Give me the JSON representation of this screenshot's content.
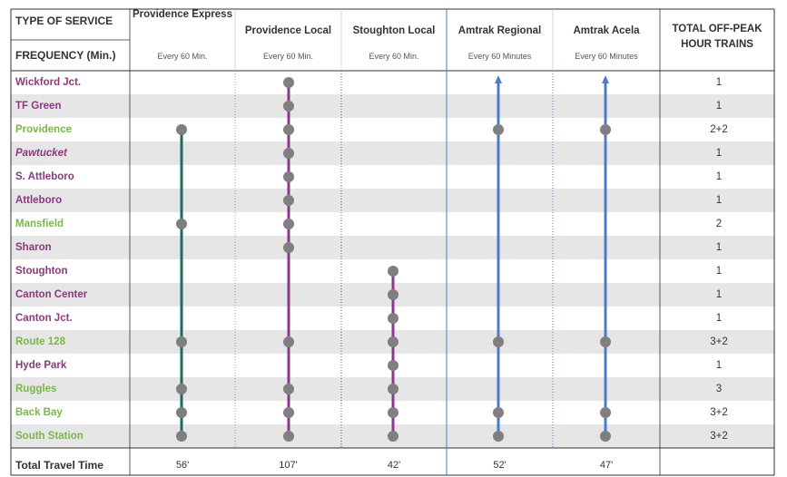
{
  "header": {
    "type_of_service": "TYPE OF SERVICE",
    "frequency": "FREQUENCY (Min.)",
    "total_trains": "TOTAL OFF-PEAK HOUR TRAINS"
  },
  "services": [
    {
      "name": "Providence Express",
      "frequency": "Every 60 Min.",
      "travel_time": "56'",
      "color": "#1f6b5f",
      "style": "dots",
      "stops": [
        2,
        6,
        11,
        13,
        14,
        15
      ]
    },
    {
      "name": "Providence Local",
      "frequency": "Every 60 Min.",
      "travel_time": "107'",
      "color": "#8b3a8a",
      "style": "dots",
      "stops": [
        0,
        1,
        2,
        3,
        4,
        5,
        6,
        7,
        11,
        13,
        14,
        15
      ]
    },
    {
      "name": "Stoughton Local",
      "frequency": "Every 60 Min.",
      "travel_time": "42'",
      "color": "#8b3a8a",
      "style": "dots",
      "stops": [
        8,
        9,
        10,
        11,
        12,
        13,
        14,
        15
      ]
    },
    {
      "name": "Amtrak Regional",
      "frequency": "Every 60 Minutes",
      "travel_time": "52'",
      "color": "#4a7cc9",
      "style": "arrow",
      "stops": [
        2,
        11,
        14,
        15
      ]
    },
    {
      "name": "Amtrak Acela",
      "frequency": "Every 60 Minutes",
      "travel_time": "47'",
      "color": "#4a7cc9",
      "style": "arrow",
      "stops": [
        2,
        11,
        14,
        15
      ]
    }
  ],
  "stations": [
    {
      "name": "Wickford Jct.",
      "color": "purple",
      "italic": false,
      "total": "1"
    },
    {
      "name": "TF Green",
      "color": "purple",
      "italic": false,
      "total": "1"
    },
    {
      "name": "Providence",
      "color": "green",
      "italic": false,
      "total": "2+2"
    },
    {
      "name": "Pawtucket",
      "color": "purple",
      "italic": true,
      "total": "1"
    },
    {
      "name": "S. Attleboro",
      "color": "purple",
      "italic": false,
      "total": "1"
    },
    {
      "name": "Attleboro",
      "color": "purple",
      "italic": false,
      "total": "1"
    },
    {
      "name": "Mansfield",
      "color": "green",
      "italic": false,
      "total": "2"
    },
    {
      "name": "Sharon",
      "color": "purple",
      "italic": false,
      "total": "1"
    },
    {
      "name": "Stoughton",
      "color": "purple",
      "italic": false,
      "total": "1"
    },
    {
      "name": "Canton Center",
      "color": "purple",
      "italic": false,
      "total": "1"
    },
    {
      "name": "Canton Jct.",
      "color": "purple",
      "italic": false,
      "total": "1"
    },
    {
      "name": "Route 128",
      "color": "green",
      "italic": false,
      "total": "3+2"
    },
    {
      "name": "Hyde Park",
      "color": "purple",
      "italic": false,
      "total": "1"
    },
    {
      "name": "Ruggles",
      "color": "green",
      "italic": false,
      "total": "3"
    },
    {
      "name": "Back Bay",
      "color": "green",
      "italic": false,
      "total": "3+2"
    },
    {
      "name": "South Station",
      "color": "green",
      "italic": false,
      "total": "3+2"
    }
  ],
  "footer": {
    "label": "Total Travel Time"
  },
  "colors": {
    "station_purple": "#8a3a7d",
    "station_green": "#7ab648",
    "dot": "#7f7f7f",
    "row_shade": "#e6e6e6"
  }
}
